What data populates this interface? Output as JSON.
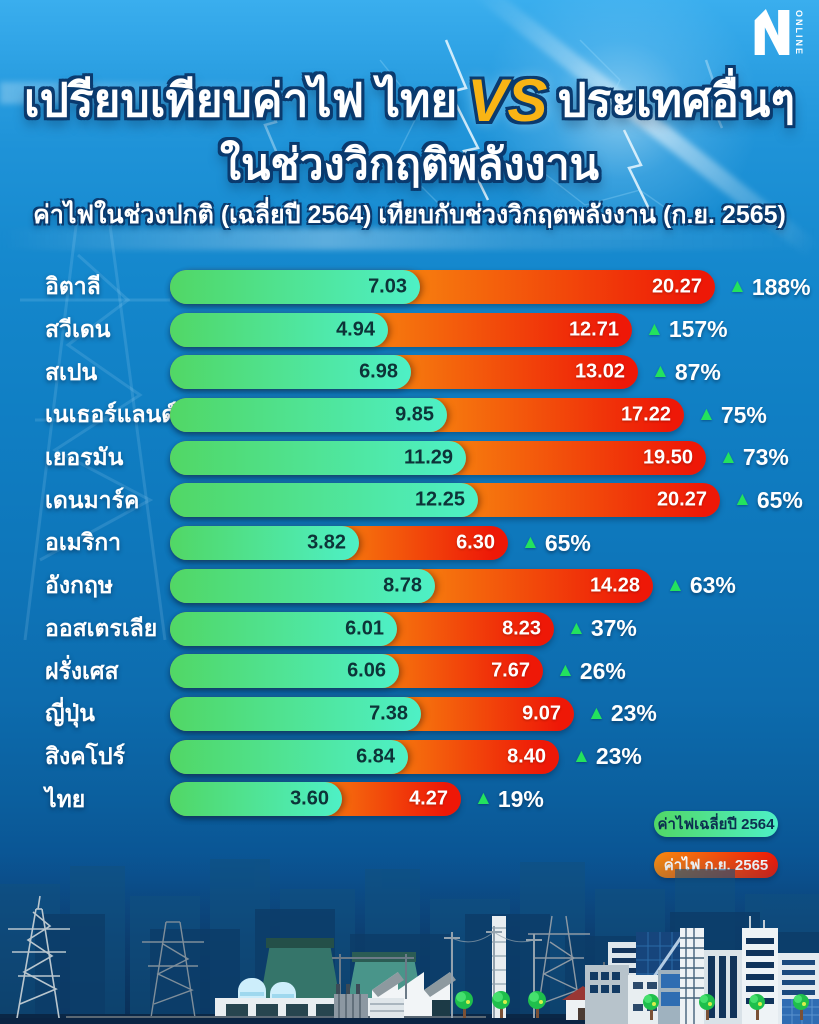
{
  "logo": {
    "letter": "N",
    "label": "ONLINE"
  },
  "header": {
    "title_part1": "เปรียบเทียบค่าไฟ ไทย",
    "vs": "VS",
    "title_part2": "ประเทศอื่นๆ",
    "title_line2": "ในช่วงวิกฤติพลังงาน",
    "subtitle": "ค่าไฟในช่วงปกติ (เฉลี่ยปี 2564) เทียบกับช่วงวิกฤตพลังงาน (ก.ย. 2565)"
  },
  "legend": {
    "normal_label": "ค่าไฟเฉลี่ยปี 2564",
    "crisis_label": "ค่าไฟ ก.ย. 2565"
  },
  "colors": {
    "green_start": "#51d765",
    "green_end": "#4ef0c6",
    "orange_start": "#f7890f",
    "red_end": "#ee1807",
    "triangle_green": "#23e25e",
    "vs_gold": "#f9b415",
    "title_outline": "#0a3a6e",
    "value_text_on_green": "#0d3338"
  },
  "chart_data": {
    "type": "bar",
    "orientation": "horizontal",
    "title": "เปรียบเทียบค่าไฟ ไทย VS ประเทศอื่นๆ ในช่วงวิกฤติพลังงาน",
    "subtitle": "ค่าไฟในช่วงปกติ (เฉลี่ยปี 2564) เทียบกับช่วงวิกฤตพลังงาน (ก.ย. 2565)",
    "series": [
      "ค่าไฟเฉลี่ยปี 2564",
      "ค่าไฟ ก.ย. 2565"
    ],
    "legend_position": "bottom-right",
    "value_max": 20.27,
    "up_symbol": "▲",
    "rows": [
      {
        "country": "อิตาลี",
        "normal": "7.03",
        "crisis": "20.27",
        "change": "188%",
        "green_w": 250,
        "red_w": 545
      },
      {
        "country": "สวีเดน",
        "normal": "4.94",
        "crisis": "12.71",
        "change": "157%",
        "green_w": 218,
        "red_w": 462
      },
      {
        "country": "สเปน",
        "normal": "6.98",
        "crisis": "13.02",
        "change": "87%",
        "green_w": 241,
        "red_w": 468
      },
      {
        "country": "เนเธอร์แลนด์",
        "normal": "9.85",
        "crisis": "17.22",
        "change": "75%",
        "green_w": 277,
        "red_w": 514
      },
      {
        "country": "เยอรมัน",
        "normal": "11.29",
        "crisis": "19.50",
        "change": "73%",
        "green_w": 296,
        "red_w": 536
      },
      {
        "country": "เดนมาร์ค",
        "normal": "12.25",
        "crisis": "20.27",
        "change": "65%",
        "green_w": 308,
        "red_w": 550
      },
      {
        "country": "อเมริกา",
        "normal": "3.82",
        "crisis": "6.30",
        "change": "65%",
        "green_w": 189,
        "red_w": 338
      },
      {
        "country": "อังกฤษ",
        "normal": "8.78",
        "crisis": "14.28",
        "change": "63%",
        "green_w": 265,
        "red_w": 483
      },
      {
        "country": "ออสเตรเลีย",
        "normal": "6.01",
        "crisis": "8.23",
        "change": "37%",
        "green_w": 227,
        "red_w": 384
      },
      {
        "country": "ฝรั่งเศส",
        "normal": "6.06",
        "crisis": "7.67",
        "change": "26%",
        "green_w": 229,
        "red_w": 373
      },
      {
        "country": "ญี่ปุ่น",
        "normal": "7.38",
        "crisis": "9.07",
        "change": "23%",
        "green_w": 251,
        "red_w": 404
      },
      {
        "country": "สิงคโปร์",
        "normal": "6.84",
        "crisis": "8.40",
        "change": "23%",
        "green_w": 238,
        "red_w": 389
      },
      {
        "country": "ไทย",
        "normal": "3.60",
        "crisis": "4.27",
        "change": "19%",
        "green_w": 172,
        "red_w": 291
      }
    ]
  }
}
